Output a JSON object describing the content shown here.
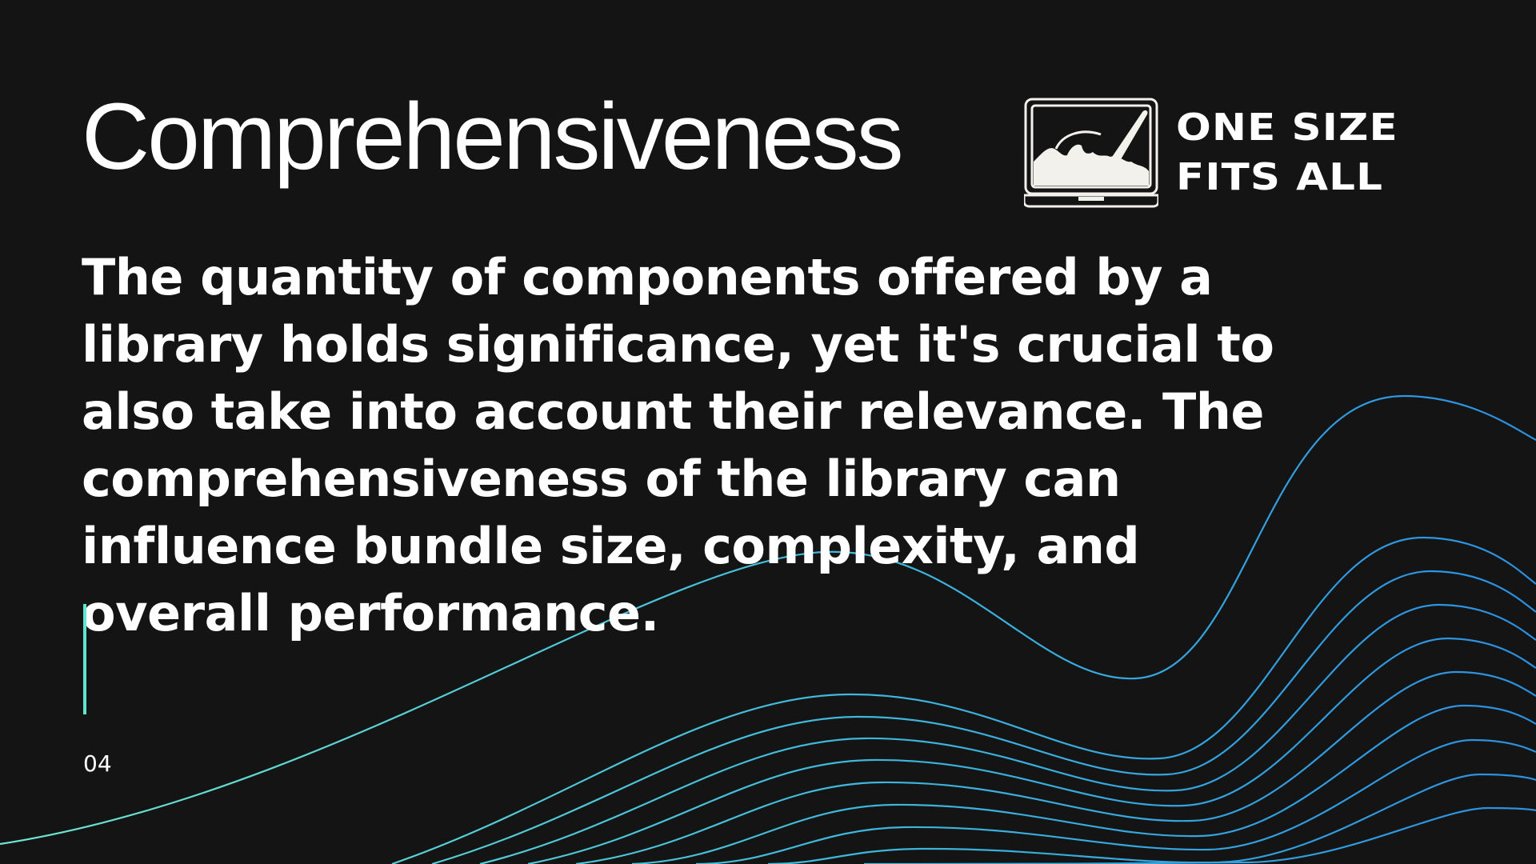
{
  "slide": {
    "title": "Comprehensiveness",
    "body": "The quantity of components offered by a library holds significance, yet it's crucial to also take into account their relevance. The comprehensiveness of the library can influence bundle size, complexity, and overall performance.",
    "page_number": "04"
  },
  "brand": {
    "line1": "ONE SIZE",
    "line2": "FITS ALL",
    "logo_icon": "monitor-paintbrush-landscape-icon"
  },
  "colors": {
    "background": "#141414",
    "text": "#ffffff",
    "accent": "#5ee6d0",
    "wave_start": "#6fe7cf",
    "wave_end": "#2b8fe0"
  }
}
